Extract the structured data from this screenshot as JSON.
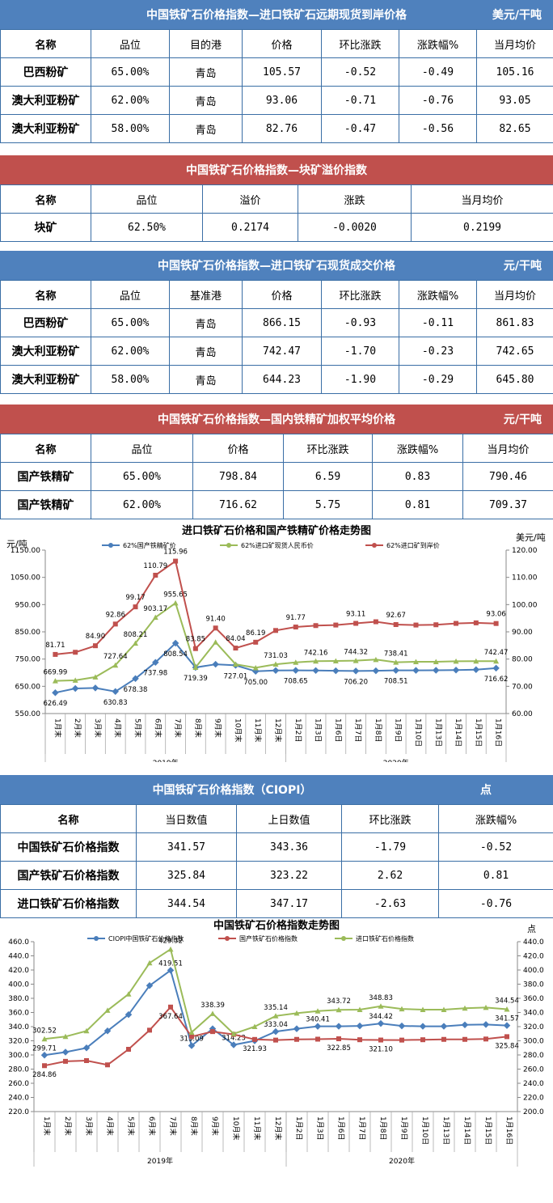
{
  "t1": {
    "title": "中国铁矿石价格指数—进口铁矿石远期现货到岸价格",
    "unit": "美元/干吨",
    "headers": [
      "名称",
      "品位",
      "目的港",
      "价格",
      "环比涨跌",
      "涨跌幅%",
      "当月均价"
    ],
    "rows": [
      [
        "巴西粉矿",
        "65.00%",
        "青岛",
        "105.57",
        "-0.52",
        "-0.49",
        "105.16"
      ],
      [
        "澳大利亚粉矿",
        "62.00%",
        "青岛",
        "93.06",
        "-0.71",
        "-0.76",
        "93.05"
      ],
      [
        "澳大利亚粉矿",
        "58.00%",
        "青岛",
        "82.76",
        "-0.47",
        "-0.56",
        "82.65"
      ]
    ]
  },
  "t2": {
    "title": "中国铁矿石价格指数—块矿溢价指数",
    "headers": [
      "名称",
      "品位",
      "溢价",
      "涨跌",
      "当月均价"
    ],
    "rows": [
      [
        "块矿",
        "62.50%",
        "0.2174",
        "-0.0020",
        "0.2199"
      ]
    ]
  },
  "t3": {
    "title": "中国铁矿石价格指数—进口铁矿石现货成交价格",
    "unit": "元/干吨",
    "headers": [
      "名称",
      "品位",
      "基准港",
      "价格",
      "环比涨跌",
      "涨跌幅%",
      "当月均价"
    ],
    "rows": [
      [
        "巴西粉矿",
        "65.00%",
        "青岛",
        "866.15",
        "-0.93",
        "-0.11",
        "861.83"
      ],
      [
        "澳大利亚粉矿",
        "62.00%",
        "青岛",
        "742.47",
        "-1.70",
        "-0.23",
        "742.65"
      ],
      [
        "澳大利亚粉矿",
        "58.00%",
        "青岛",
        "644.23",
        "-1.90",
        "-0.29",
        "645.80"
      ]
    ]
  },
  "t4": {
    "title": "中国铁矿石价格指数—国内铁精矿加权平均价格",
    "unit": "元/干吨",
    "headers": [
      "名称",
      "品位",
      "价格",
      "环比涨跌",
      "涨跌幅%",
      "当月均价"
    ],
    "rows": [
      [
        "国产铁精矿",
        "65.00%",
        "798.84",
        "6.59",
        "0.83",
        "790.46"
      ],
      [
        "国产铁精矿",
        "62.00%",
        "716.62",
        "5.75",
        "0.81",
        "709.37"
      ]
    ]
  },
  "t5": {
    "title": "中国铁矿石价格指数（CIOPI）",
    "unit": "点",
    "headers": [
      "名称",
      "当日数值",
      "上日数值",
      "环比涨跌",
      "涨跌幅%"
    ],
    "rows": [
      [
        "中国铁矿石价格指数",
        "341.57",
        "343.36",
        "-1.79",
        "-0.52"
      ],
      [
        "国产铁矿石价格指数",
        "325.84",
        "323.22",
        "2.62",
        "0.81"
      ],
      [
        "进口铁矿石价格指数",
        "344.54",
        "347.17",
        "-2.63",
        "-0.76"
      ]
    ]
  },
  "chart_data": [
    {
      "type": "line",
      "title": "进口铁矿石价格和国产铁精矿价格走势图",
      "ylabel": "元/吨",
      "y2label": "美元/吨",
      "ylim": [
        550,
        1150
      ],
      "y2lim": [
        60,
        120
      ],
      "yticks": [
        "550.00",
        "650.00",
        "750.00",
        "850.00",
        "950.00",
        "1050.00",
        "1150.00"
      ],
      "y2ticks": [
        "60.00",
        "70.00",
        "80.00",
        "90.00",
        "100.00",
        "110.00",
        "120.00"
      ],
      "categories": [
        "1月末",
        "2月末",
        "3月末",
        "4月末",
        "5月末",
        "6月末",
        "7月末",
        "8月末",
        "9月末",
        "10月末",
        "11月末",
        "12月末",
        "1月2日",
        "1月3日",
        "1月6日",
        "1月7日",
        "1月8日",
        "1月9日",
        "1月10日",
        "1月13日",
        "1月14日",
        "1月15日",
        "1月16日"
      ],
      "groups": [
        "2019年",
        "2020年"
      ],
      "legend_position": "top",
      "series": [
        {
          "name": "62%国产铁精矿价",
          "axis": "left",
          "color": "#4a7ebb",
          "values": [
            626.49,
            642,
            644,
            630.83,
            678.38,
            737.98,
            808.54,
            719.39,
            731,
            727.01,
            705.0,
            708,
            708.65,
            708,
            707,
            706.2,
            707,
            708.51,
            708.5,
            709,
            709.5,
            711,
            716.62
          ],
          "labels": [
            "626.49",
            "",
            "",
            "630.83",
            "678.38",
            "737.98",
            "808.54",
            "719.39",
            "",
            "727.01",
            "705.00",
            "",
            "708.65",
            "",
            "",
            "706.20",
            "",
            "708.51",
            "",
            "",
            "",
            "",
            "716.62"
          ]
        },
        {
          "name": "62%进口矿现货人民币价",
          "axis": "left",
          "color": "#9bbb59",
          "values": [
            669.99,
            672,
            684,
            727.64,
            808.21,
            903.17,
            955.65,
            719.39,
            812,
            731.03,
            718,
            731.03,
            738,
            742.16,
            743,
            744.32,
            748,
            738.41,
            740,
            740,
            742,
            742.5,
            742.47
          ],
          "labels": [
            "669.99",
            "",
            "",
            "727.64",
            "808.21",
            "903.17",
            "955.65",
            "",
            "",
            "",
            "",
            "731.03",
            "",
            "742.16",
            "",
            "744.32",
            "",
            "738.41",
            "",
            "",
            "",
            "",
            "742.47"
          ]
        },
        {
          "name": "62%进口矿到岸价",
          "axis": "right",
          "color": "#c0504d",
          "values": [
            81.71,
            82.5,
            84.9,
            92.86,
            99.17,
            110.79,
            115.96,
            83.85,
            91.4,
            84.04,
            86.19,
            90.5,
            91.77,
            92.3,
            92.5,
            93.11,
            93.7,
            92.67,
            92.5,
            92.6,
            93.1,
            93.3,
            93.06
          ],
          "labels": [
            "81.71",
            "",
            "84.90",
            "92.86",
            "99.17",
            "110.79",
            "115.96",
            "83.85",
            "91.40",
            "84.04",
            "86.19",
            "",
            "91.77",
            "",
            "",
            "93.11",
            "",
            "92.67",
            "",
            "",
            "",
            "",
            "93.06"
          ]
        }
      ]
    },
    {
      "type": "line",
      "title": "中国铁矿石价格指数走势图",
      "y2label": "点",
      "ylim": [
        220,
        460
      ],
      "y2lim": [
        200,
        440
      ],
      "yticks": [
        "220.0",
        "240.0",
        "260.0",
        "280.0",
        "300.0",
        "320.0",
        "340.0",
        "360.0",
        "380.0",
        "400.0",
        "420.0",
        "440.0",
        "460.0"
      ],
      "y2ticks": [
        "200.0",
        "220.0",
        "240.0",
        "260.0",
        "280.0",
        "300.0",
        "320.0",
        "340.0",
        "360.0",
        "380.0",
        "400.0",
        "420.0",
        "440.0"
      ],
      "categories": [
        "1月末",
        "2月末",
        "3月末",
        "4月末",
        "5月末",
        "6月末",
        "7月末",
        "8月末",
        "9月末",
        "10月末",
        "11月末",
        "12月末",
        "1月2日",
        "1月3日",
        "1月6日",
        "1月7日",
        "1月8日",
        "1月9日",
        "1月10日",
        "1月13日",
        "1月14日",
        "1月15日",
        "1月16日"
      ],
      "groups": [
        "2019年",
        "2020年"
      ],
      "legend_position": "top",
      "series": [
        {
          "name": "CIOPI中国铁矿石价格指数",
          "axis": "left",
          "color": "#4a7ebb",
          "values": [
            299.71,
            304,
            310,
            334,
            357,
            398,
            419.51,
            313.09,
            337,
            314.23,
            320,
            333.04,
            337,
            340.41,
            340.5,
            341,
            344.42,
            341,
            340.5,
            340.5,
            342.5,
            343,
            341.57
          ],
          "labels": [
            "299.71",
            "",
            "",
            "",
            "",
            "",
            "419.51",
            "313.09",
            "",
            "314.23",
            "",
            "333.04",
            "",
            "340.41",
            "",
            "",
            "344.42",
            "",
            "",
            "",
            "",
            "",
            "341.57"
          ]
        },
        {
          "name": "国产铁矿石价格指数",
          "axis": "left",
          "color": "#c0504d",
          "values": [
            284.86,
            291,
            292,
            286,
            308,
            335,
            367.64,
            326,
            333,
            329,
            321.93,
            321,
            322,
            322.3,
            322.85,
            321.5,
            321.1,
            321,
            321.5,
            322,
            322,
            322.5,
            325.84
          ],
          "labels": [
            "284.86",
            "",
            "",
            "",
            "",
            "",
            "367.64",
            "",
            "",
            "",
            "321.93",
            "",
            "",
            "",
            "322.85",
            "",
            "321.10",
            "",
            "",
            "",
            "",
            "",
            "325.84"
          ]
        },
        {
          "name": "进口铁矿石价格指数",
          "axis": "right",
          "color": "#9bbb59",
          "values": [
            302.52,
            306,
            314,
            343,
            366,
            410,
            429.32,
            312,
            338.39,
            310,
            320,
            335.14,
            339,
            342,
            343.72,
            344,
            348.83,
            345,
            344,
            344,
            346,
            347,
            344.54
          ],
          "labels": [
            "302.52",
            "",
            "",
            "",
            "",
            "",
            "429.32",
            "",
            "338.39",
            "",
            "",
            "335.14",
            "",
            "",
            "343.72",
            "",
            "348.83",
            "",
            "",
            "",
            "",
            "",
            "344.54"
          ]
        }
      ]
    }
  ]
}
